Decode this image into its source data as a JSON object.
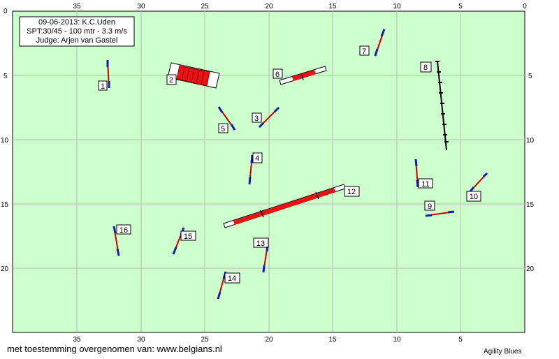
{
  "info": {
    "line1": "09-06-2013: K.C.Uden",
    "line2": "SPT:30/45 - 100 mtr - 3.3 m/s",
    "line3": "Judge: Arjen van Gastel"
  },
  "axis": {
    "x_ticks": [
      "35",
      "30",
      "25",
      "20",
      "15",
      "10",
      "5",
      "0"
    ],
    "x_edge": "0",
    "y_ticks": [
      "5",
      "10",
      "15",
      "20"
    ],
    "y_edge": "0"
  },
  "numbers": [
    "1",
    "2",
    "3",
    "4",
    "5",
    "6",
    "7",
    "8",
    "9",
    "10",
    "11",
    "12",
    "13",
    "14",
    "15",
    "16"
  ],
  "footer": {
    "credit": "met toestemming overgenomen van: www.belgians.nl",
    "brand": "Agility Blues"
  },
  "colors": {
    "field": "#ccffcc",
    "grid": "#b8b8b8",
    "hurdle": "#cc0000",
    "wing": "#1a1aaa",
    "tunnel": "#ee1111",
    "weave": "#000000"
  }
}
